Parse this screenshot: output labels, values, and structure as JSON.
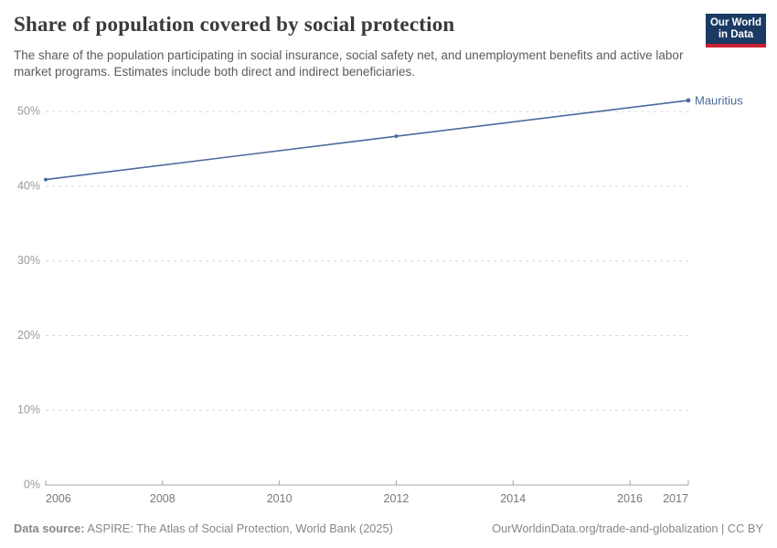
{
  "header": {
    "title": "Share of population covered by social protection",
    "subtitle": "The share of the population participating in social insurance, social safety net, and unemployment benefits and active labor market programs. Estimates include both direct and indirect beneficiaries.",
    "logo": {
      "line1": "Our World",
      "line2": "in Data",
      "bg_color": "#1a3a63",
      "accent_color": "#cb2034"
    }
  },
  "chart_data": {
    "type": "line",
    "title": "Share of population covered by social protection",
    "xlabel": "",
    "ylabel": "",
    "x_range": [
      2006,
      2017
    ],
    "y_range": [
      0,
      50
    ],
    "grid": true,
    "legend_position": "end-of-line",
    "x_ticks": [
      2006,
      2008,
      2010,
      2012,
      2014,
      2016,
      2017
    ],
    "y_ticks": [
      0,
      10,
      20,
      30,
      40,
      50
    ],
    "y_tick_suffix": "%",
    "series": [
      {
        "name": "Mauritius",
        "color": "#4c6a9c",
        "points": [
          {
            "x": 2006,
            "y": 40.9
          },
          {
            "x": 2012,
            "y": 46.7
          },
          {
            "x": 2017,
            "y": 51.5
          }
        ]
      }
    ],
    "colors": {
      "gridline": "#d7d7d7",
      "axis": "#a3a3a3",
      "y_tick_label": "#9a9a9a",
      "x_tick_label": "#787878"
    }
  },
  "footer": {
    "source_label": "Data source:",
    "source_text": " ASPIRE: The Atlas of Social Protection, World Bank (2025)",
    "attribution": "OurWorldinData.org/trade-and-globalization | CC BY"
  }
}
